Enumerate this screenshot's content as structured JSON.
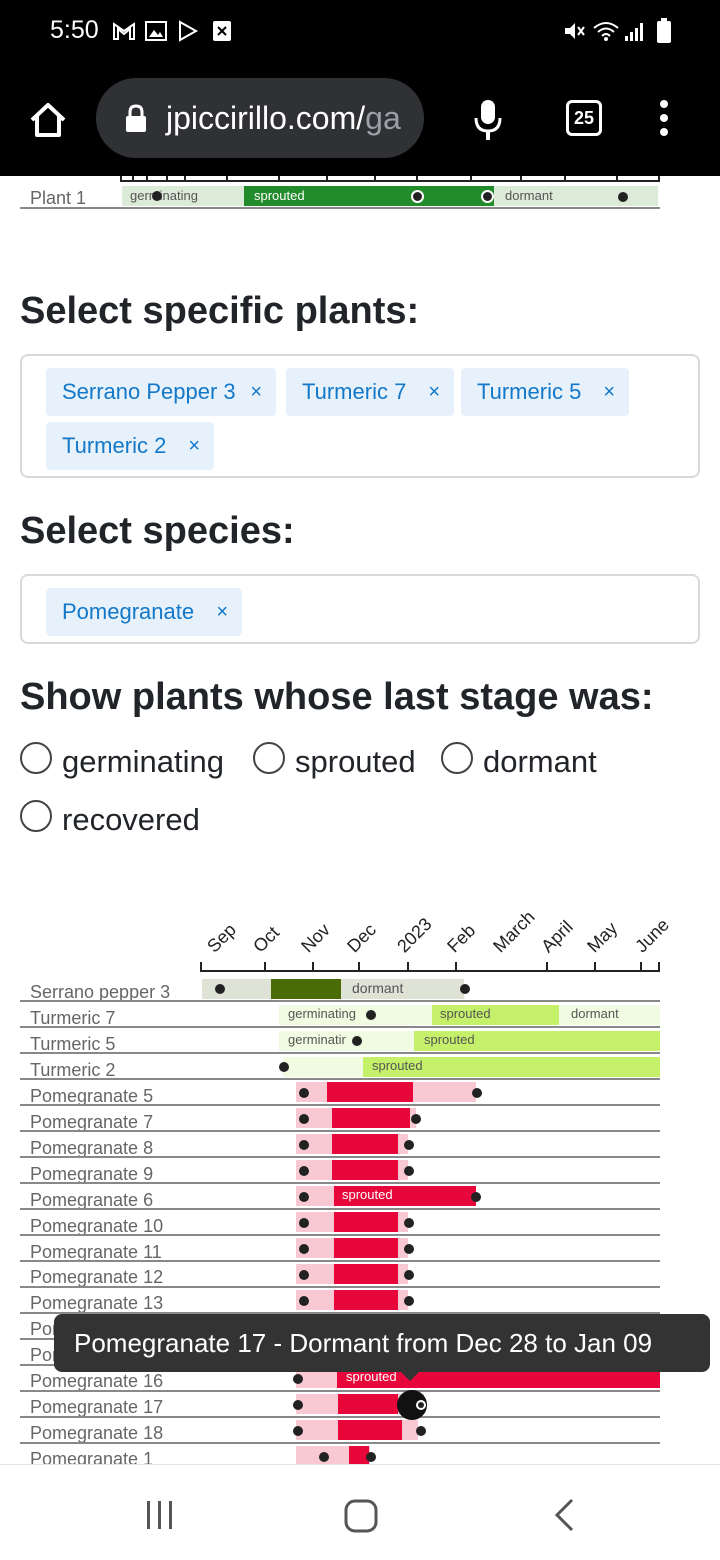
{
  "status_bar": {
    "time": "5:50"
  },
  "browser": {
    "url_main": "jpiccirillo.com/",
    "url_faded": "ga",
    "tab_count": "25"
  },
  "top_chart": {
    "row_label": "Plant 1",
    "segments": [
      "germinating",
      "sprouted",
      "dormant"
    ]
  },
  "plants_section": {
    "title": "Select specific plants:",
    "tags": [
      "Serrano Pepper 3",
      "Turmeric 7",
      "Turmeric 5",
      "Turmeric 2"
    ],
    "remove_symbol": "×"
  },
  "species_section": {
    "title": "Select species:",
    "tags": [
      "Pomegranate"
    ]
  },
  "stage_section": {
    "title": "Show plants whose last stage was:",
    "options": [
      "germinating",
      "sprouted",
      "dormant",
      "recovered"
    ]
  },
  "chart_data": {
    "type": "timeline",
    "months": [
      "Sep",
      "Oct",
      "Nov",
      "Dec",
      "2023",
      "Feb",
      "March",
      "April",
      "May",
      "June"
    ],
    "rows": [
      "Serrano pepper 3",
      "Turmeric 7",
      "Turmeric 5",
      "Turmeric 2",
      "Pomegranate 5",
      "Pomegranate 7",
      "Pomegranate 8",
      "Pomegranate 9",
      "Pomegranate 6",
      "Pomegranate 10",
      "Pomegranate 11",
      "Pomegranate 12",
      "Pomegranate 13",
      "Pomegranate 14",
      "Pomegranate 15",
      "Pomegranate 16",
      "Pomegranate 17",
      "Pomegranate 18",
      "Pomegranate 1"
    ],
    "segment_labels": {
      "serrano_dormant": "dormant",
      "t7_germinating": "germinating",
      "t7_sprouted": "sprouted",
      "t7_dormant": "dormant",
      "t5_germinating": "germinatir",
      "t5_sprouted": "sprouted",
      "t2_sprouted": "sprouted",
      "p6_sprouted": "sprouted",
      "p16_sprouted": "sprouted"
    },
    "colors": {
      "serrano_sprouted": "#4a6b06",
      "serrano_bg": "#dfe3d6",
      "turmeric_bg": "#f1fbe1",
      "turmeric_sprouted": "#c4f06a",
      "pom_bg": "#f8c9d3",
      "pom_sprouted": "#e8073a"
    }
  },
  "tooltip": {
    "text": "Pomegranate 17 - Dormant from Dec 28 to Jan 09"
  }
}
